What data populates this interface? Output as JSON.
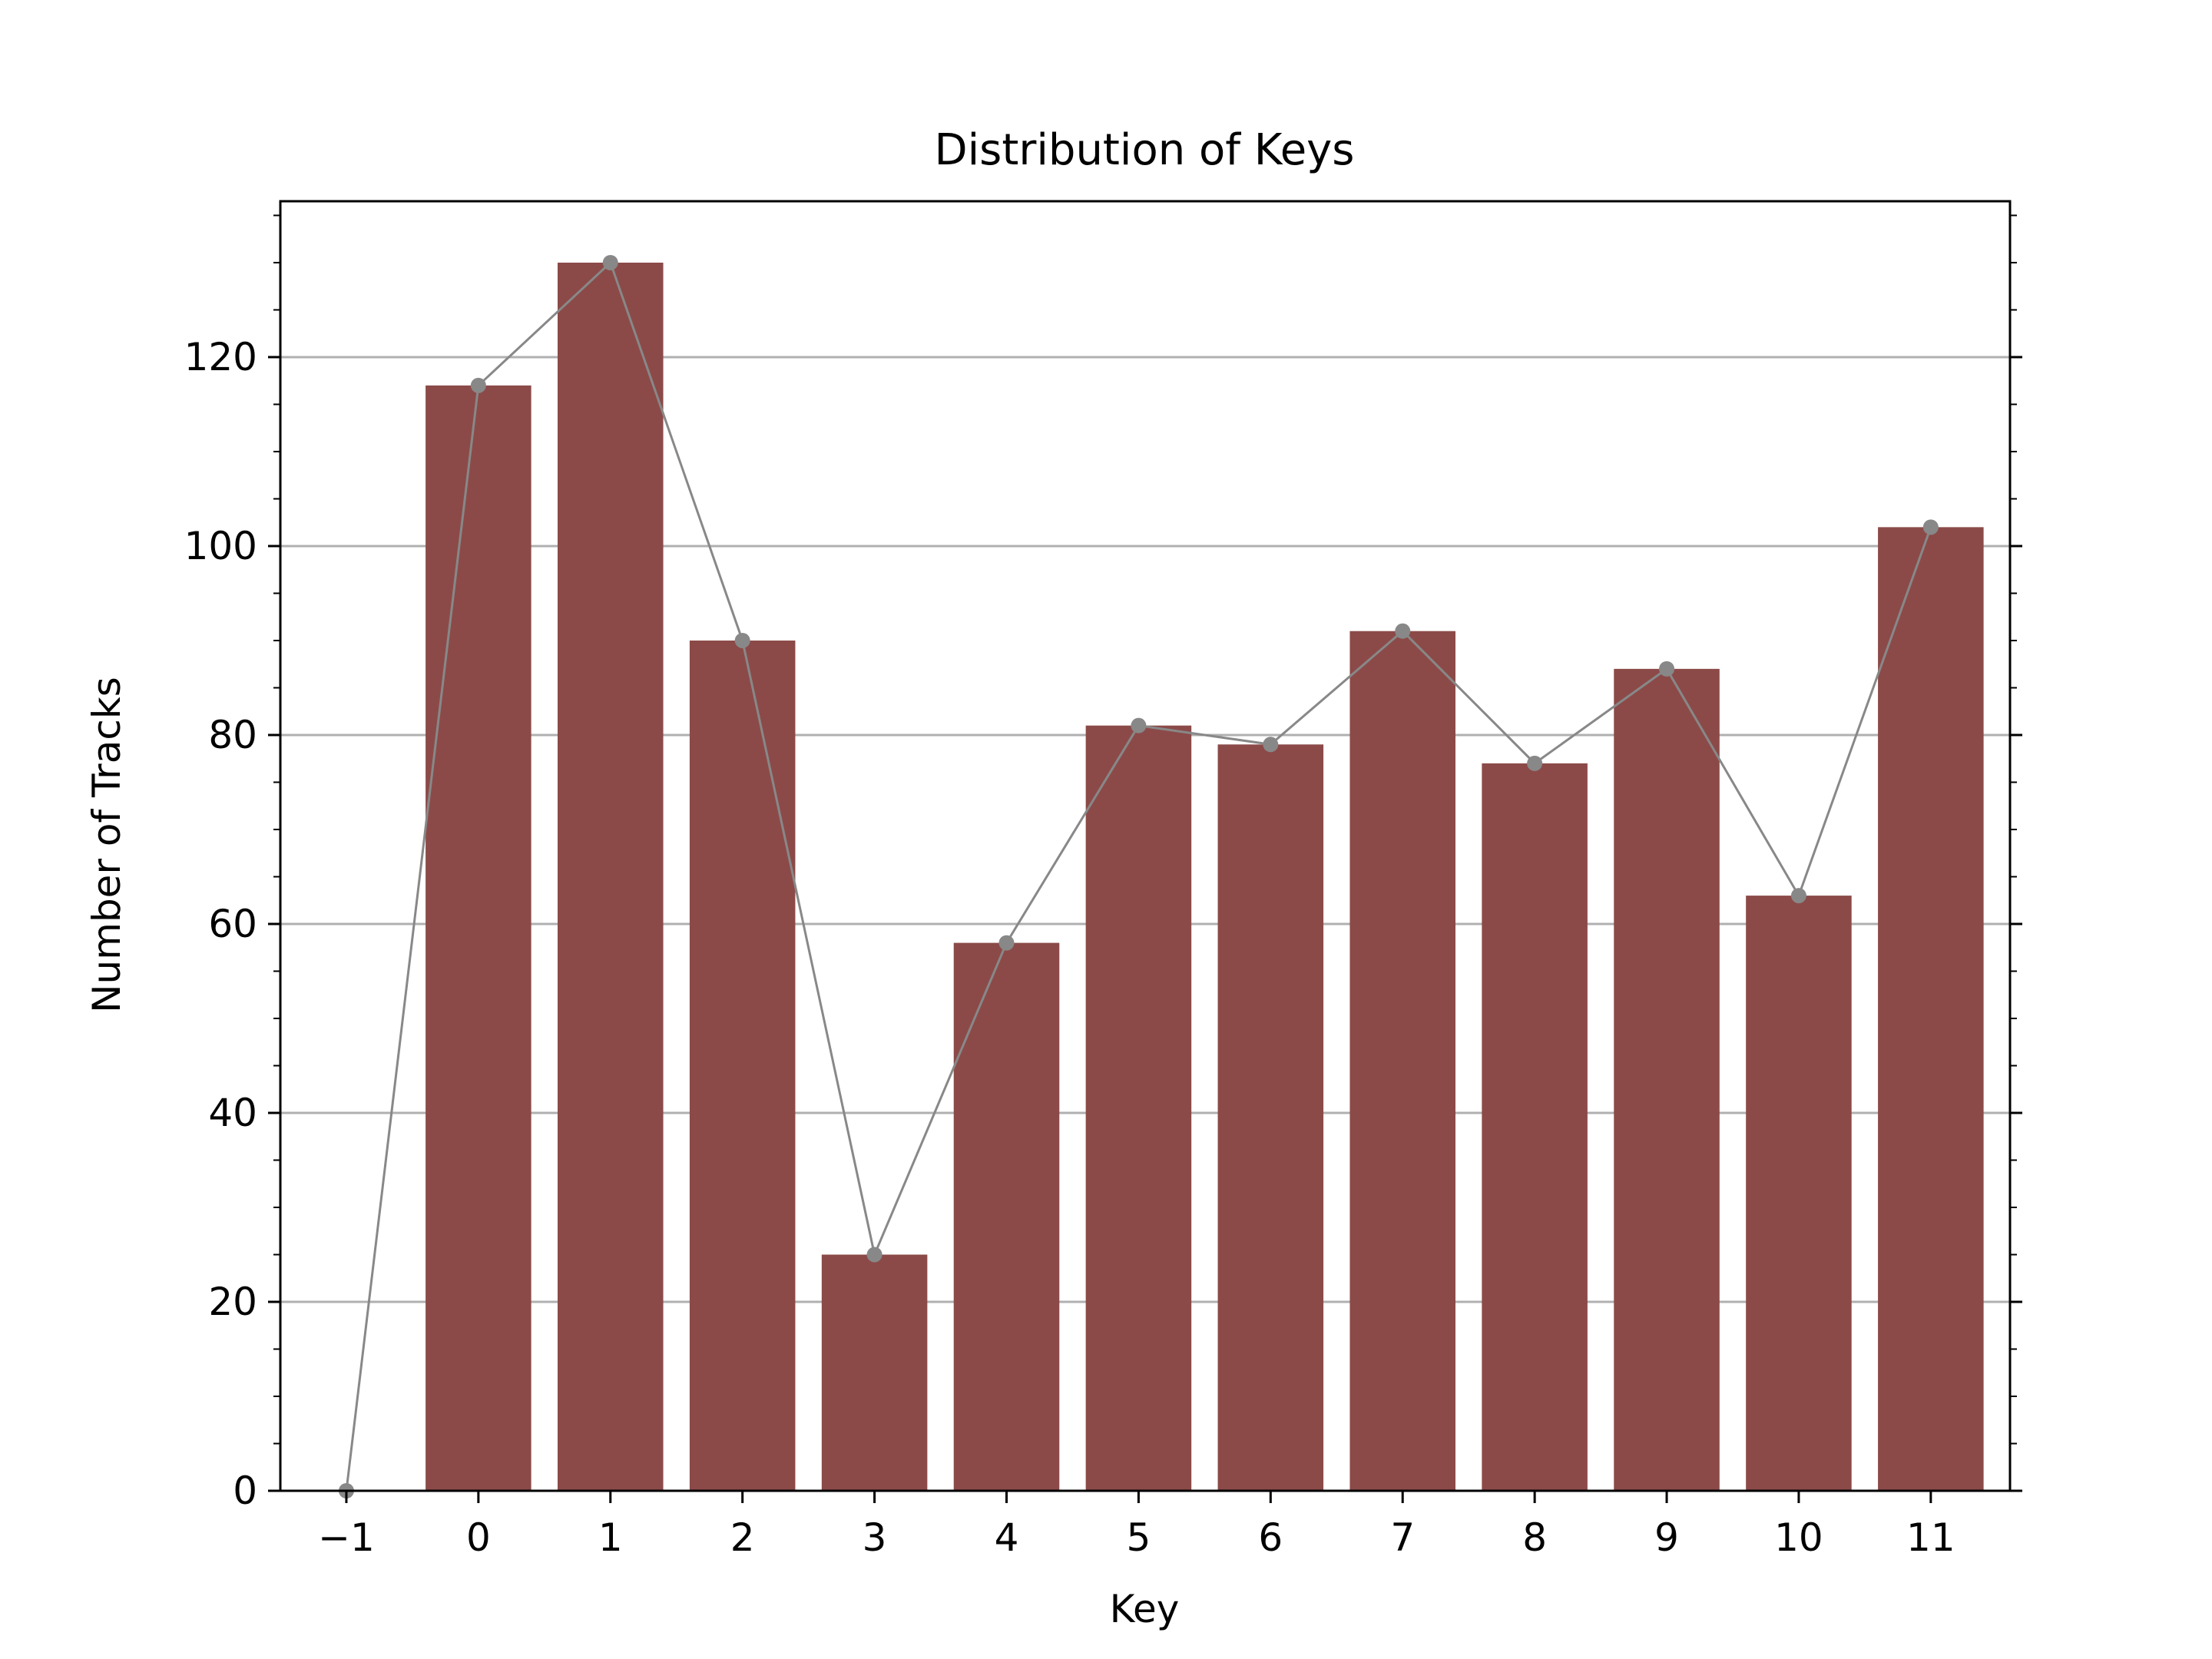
{
  "chart_data": {
    "type": "bar",
    "title": "Distribution of Keys",
    "xlabel": "Key",
    "ylabel": "Number of Tracks",
    "x": [
      -1,
      0,
      1,
      2,
      3,
      4,
      5,
      6,
      7,
      8,
      9,
      10,
      11
    ],
    "x_tick_labels": [
      "−1",
      "0",
      "1",
      "2",
      "3",
      "4",
      "5",
      "6",
      "7",
      "8",
      "9",
      "10",
      "11"
    ],
    "series": [
      {
        "type": "bar",
        "values": [
          0,
          117,
          130,
          90,
          25,
          58,
          81,
          79,
          91,
          77,
          87,
          63,
          102
        ]
      },
      {
        "type": "line",
        "values": [
          0,
          117,
          130,
          90,
          25,
          58,
          81,
          79,
          91,
          77,
          87,
          63,
          102
        ]
      }
    ],
    "xlim": [
      -1.5,
      11.6
    ],
    "ylim": [
      0,
      136.5
    ],
    "y_ticks": [
      0,
      20,
      40,
      60,
      80,
      100,
      120
    ],
    "y_minor_step": 5,
    "grid": "horizontal",
    "colors": {
      "bar": "#8b4a48",
      "line": "#888888",
      "grid": "#b0b0b0",
      "axis": "#000000"
    }
  }
}
